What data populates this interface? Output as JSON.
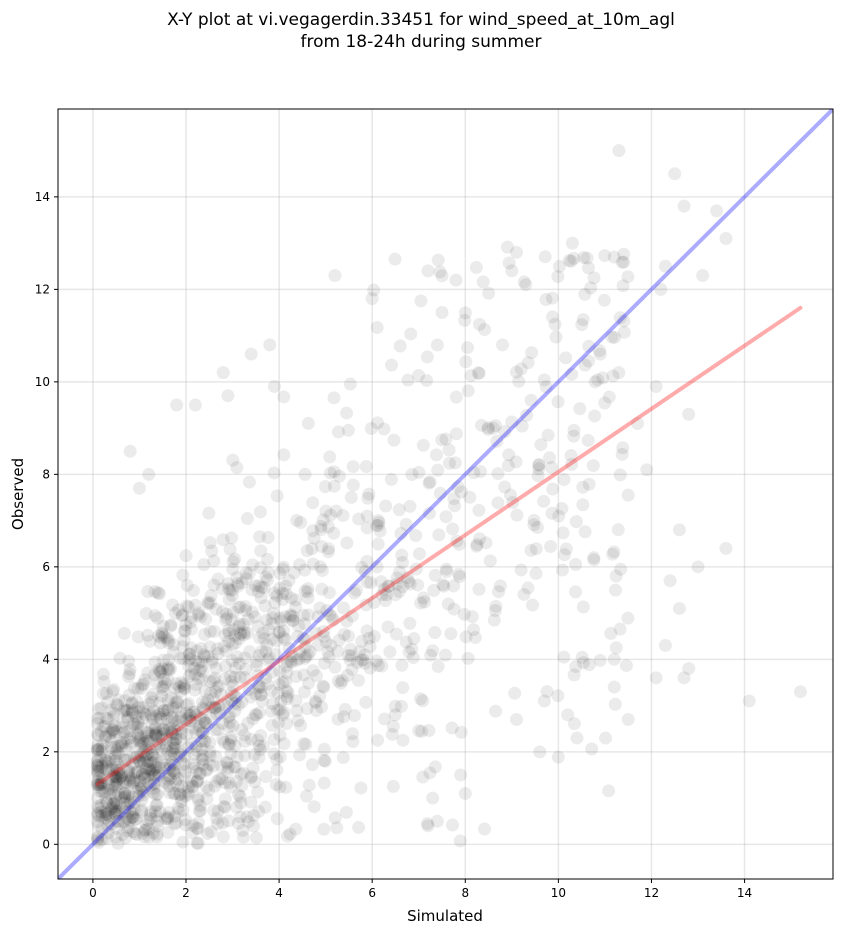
{
  "chart_data": {
    "type": "scatter",
    "title_line1": "X-Y plot at vi.vegagerdin.33451 for wind_speed_at_10m_agl",
    "title_line2": "from 18-24h during summer",
    "xlabel": "Simulated",
    "ylabel": "Observed",
    "xlim": [
      -0.75,
      15.9
    ],
    "ylim": [
      -0.75,
      15.9
    ],
    "xticks": [
      0,
      2,
      4,
      6,
      8,
      10,
      12,
      14
    ],
    "yticks": [
      0,
      2,
      4,
      6,
      8,
      10,
      12,
      14
    ],
    "grid": true,
    "point_color": "#000000",
    "point_alpha": 0.08,
    "points_note_values": "cluster",
    "identity_line": {
      "color": "#0000ff",
      "from": [
        -0.75,
        -0.75
      ],
      "to": [
        15.9,
        15.9
      ]
    },
    "regression_line": {
      "color": "#ff0000",
      "from": [
        0.1,
        1.3
      ],
      "to": [
        15.2,
        11.6
      ]
    },
    "outlier_points": [
      [
        12.5,
        14.5
      ],
      [
        12.7,
        13.8
      ],
      [
        11.3,
        15.0
      ],
      [
        13.4,
        13.7
      ],
      [
        13.6,
        13.1
      ],
      [
        12.3,
        12.5
      ],
      [
        13.1,
        12.3
      ],
      [
        12.2,
        12.0
      ],
      [
        10.3,
        13.0
      ],
      [
        11.2,
        12.7
      ],
      [
        15.2,
        3.3
      ],
      [
        14.1,
        3.1
      ],
      [
        13.6,
        6.4
      ],
      [
        12.8,
        3.8
      ],
      [
        12.7,
        3.6
      ],
      [
        12.3,
        4.3
      ],
      [
        12.1,
        3.6
      ],
      [
        11.5,
        2.7
      ],
      [
        11.2,
        3.4
      ],
      [
        11.2,
        4.0
      ],
      [
        10.4,
        2.3
      ],
      [
        10.2,
        2.8
      ],
      [
        9.6,
        2.0
      ],
      [
        9.7,
        3.1
      ],
      [
        9.1,
        2.7
      ],
      [
        8.6,
        9.0
      ],
      [
        8.8,
        10.8
      ],
      [
        9.0,
        12.4
      ],
      [
        9.1,
        12.8
      ],
      [
        9.3,
        12.1
      ],
      [
        7.5,
        11.5
      ],
      [
        7.8,
        12.2
      ],
      [
        7.2,
        12.4
      ],
      [
        5.2,
        12.3
      ],
      [
        6.0,
        11.8
      ],
      [
        1.0,
        7.7
      ],
      [
        0.8,
        8.5
      ],
      [
        1.2,
        8.0
      ],
      [
        1.8,
        9.5
      ],
      [
        2.2,
        9.5
      ],
      [
        2.8,
        10.2
      ],
      [
        3.4,
        10.6
      ],
      [
        3.8,
        10.8
      ],
      [
        2.9,
        9.7
      ],
      [
        3.9,
        9.9
      ],
      [
        7.2,
        0.4
      ],
      [
        7.4,
        0.5
      ],
      [
        7.3,
        1.0
      ],
      [
        8.0,
        1.1
      ],
      [
        7.9,
        1.5
      ],
      [
        13.0,
        6.0
      ],
      [
        12.6,
        6.8
      ],
      [
        12.4,
        5.7
      ],
      [
        12.6,
        5.1
      ],
      [
        11.9,
        8.1
      ],
      [
        11.7,
        9.1
      ],
      [
        12.1,
        9.9
      ],
      [
        12.8,
        9.3
      ],
      [
        11.3,
        10.2
      ],
      [
        10.9,
        10.6
      ]
    ]
  }
}
